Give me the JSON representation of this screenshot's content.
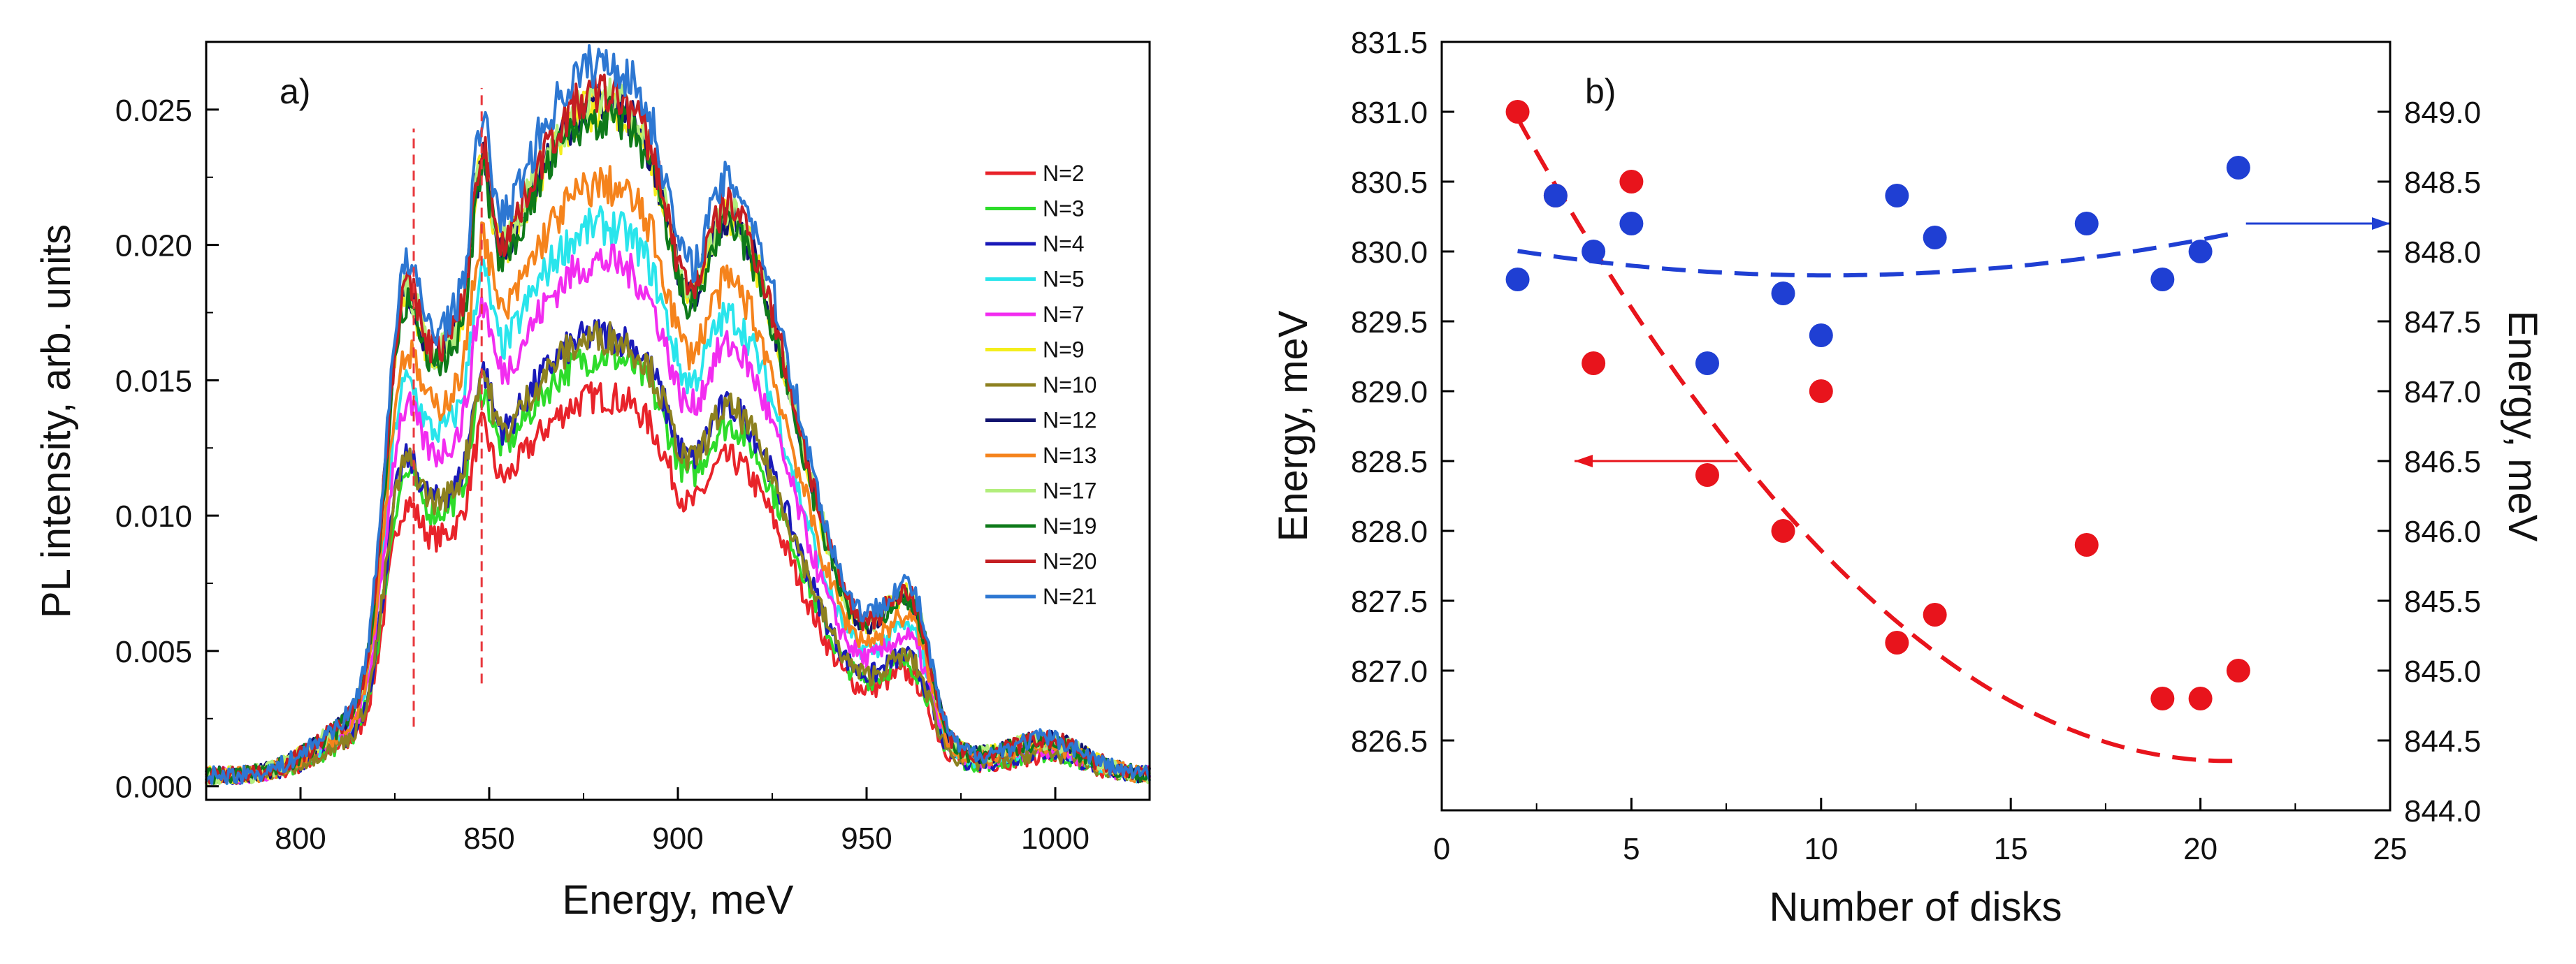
{
  "chart_data": [
    {
      "panel": "a)",
      "type": "line",
      "xlabel": "Energy, meV",
      "ylabel": "PL intensity, arb. units",
      "xlim": [
        775,
        1025
      ],
      "ylim": [
        -0.0005,
        0.0275
      ],
      "xticks": [
        800,
        850,
        900,
        950,
        1000
      ],
      "xtick_labels": [
        "800",
        "850",
        "900",
        "950",
        "1000"
      ],
      "yticks": [
        0.0,
        0.005,
        0.01,
        0.015,
        0.02,
        0.025
      ],
      "ytick_labels": [
        "0.000",
        "0.005",
        "0.010",
        "0.015",
        "0.020",
        "0.025"
      ],
      "legend_position": "right",
      "guide_lines": [
        {
          "x": 830,
          "y_range": [
            0.0022,
            0.0243
          ],
          "style": "dashed",
          "color": "#e8383d"
        },
        {
          "x": 848,
          "y_range": [
            0.0038,
            0.0258
          ],
          "style": "dashed",
          "color": "#e8383d"
        }
      ],
      "series": [
        {
          "name": "N=2",
          "color": "#e8232a",
          "peak": 0.014
        },
        {
          "name": "N=3",
          "color": "#2ddc2a",
          "peak": 0.0155
        },
        {
          "name": "N=4",
          "color": "#1a1ab8",
          "peak": 0.0163
        },
        {
          "name": "N=5",
          "color": "#29e5ec",
          "peak": 0.0203
        },
        {
          "name": "N=7",
          "color": "#f22cf0",
          "peak": 0.019
        },
        {
          "name": "N=9",
          "color": "#f4ee1c",
          "peak": 0.0247
        },
        {
          "name": "N=10",
          "color": "#8d8120",
          "peak": 0.0162
        },
        {
          "name": "N=12",
          "color": "#10126e",
          "peak": 0.0248
        },
        {
          "name": "N=13",
          "color": "#f5831c",
          "peak": 0.0218
        },
        {
          "name": "N=17",
          "color": "#b2ee7c",
          "peak": 0.025
        },
        {
          "name": "N=19",
          "color": "#0e7a1a",
          "peak": 0.0243
        },
        {
          "name": "N=20",
          "color": "#c41e22",
          "peak": 0.0252
        },
        {
          "name": "N=21",
          "color": "#2d77d2",
          "peak": 0.0263
        }
      ]
    },
    {
      "panel": "b)",
      "type": "scatter",
      "xlabel": "Number of disks",
      "ylabel": "Energy, meV",
      "ylabel_right": "Energy, meV",
      "xlim": [
        0,
        25
      ],
      "ylim": [
        826,
        831.5
      ],
      "ylim_right": [
        844,
        849.5
      ],
      "xticks": [
        0,
        5,
        10,
        15,
        20,
        25
      ],
      "xtick_labels": [
        "0",
        "5",
        "10",
        "15",
        "20",
        "25"
      ],
      "yticks": [
        826.5,
        827.0,
        827.5,
        828.0,
        828.5,
        829.0,
        829.5,
        830.0,
        830.5,
        831.0,
        831.5
      ],
      "ytick_labels": [
        "826.5",
        "827.0",
        "827.5",
        "828.0",
        "828.5",
        "829.0",
        "829.5",
        "830.0",
        "830.5",
        "831.0",
        "831.5"
      ],
      "yticks_right": [
        844.0,
        844.5,
        845.0,
        845.5,
        846.0,
        846.5,
        847.0,
        847.5,
        848.0,
        848.5,
        849.0
      ],
      "ytick_labels_right": [
        "844.0",
        "844.5",
        "845.0",
        "845.5",
        "846.0",
        "846.5",
        "847.0",
        "847.5",
        "848.0",
        "848.5",
        "849.0"
      ],
      "series": [
        {
          "name": "left axis (red)",
          "axis": "left",
          "color": "#e8141c",
          "x": [
            2,
            3,
            4,
            5,
            7,
            9,
            10,
            12,
            13,
            17,
            19,
            20,
            21
          ],
          "y": [
            831.0,
            830.4,
            829.2,
            830.5,
            828.4,
            828.0,
            829.0,
            827.2,
            827.4,
            827.9,
            826.8,
            826.8,
            827.0
          ],
          "fit": {
            "style": "dashed",
            "x_range": [
              2,
              21
            ],
            "coefficients": [
              831.99,
              -0.5445,
              0.01315
            ]
          },
          "arrow": {
            "points_to": "left",
            "from_x": 7.8,
            "to_x": 3.5,
            "y": 828.5
          }
        },
        {
          "name": "right axis (blue)",
          "axis": "right",
          "color": "#1f3fd3",
          "x": [
            2,
            3,
            4,
            5,
            7,
            9,
            10,
            12,
            13,
            17,
            19,
            20,
            21
          ],
          "y": [
            847.8,
            848.4,
            848.0,
            848.2,
            847.2,
            847.7,
            847.4,
            848.4,
            848.1,
            848.2,
            847.8,
            848.0,
            848.6
          ],
          "fit": {
            "style": "dashed",
            "x_range": [
              2,
              21
            ],
            "coefficients": [
              848.1,
              -0.0534,
              0.00263
            ]
          },
          "arrow": {
            "points_to": "right",
            "from_x": 21.2,
            "to_x": 25.0,
            "y": 848.2
          }
        }
      ]
    }
  ]
}
